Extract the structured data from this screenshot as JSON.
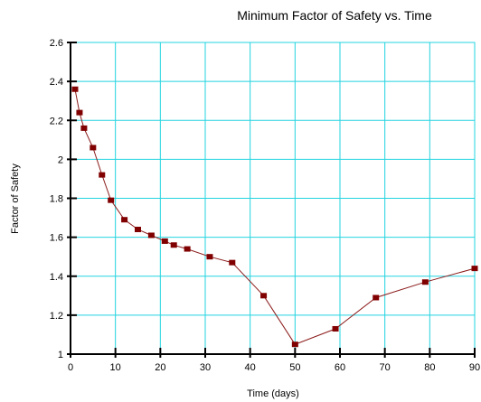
{
  "chart_data": {
    "type": "line",
    "title": "Minimum Factor of Safety vs. Time",
    "xlabel": "Time (days)",
    "ylabel": "Factor of Safety",
    "xlim": [
      0,
      90
    ],
    "ylim": [
      1,
      2.6
    ],
    "xticks": [
      0,
      10,
      20,
      30,
      40,
      50,
      60,
      70,
      80,
      90
    ],
    "yticks": [
      1,
      1.2,
      1.4,
      1.6,
      1.8,
      2,
      2.2,
      2.4,
      2.6
    ],
    "xtick_labels": [
      "0",
      "10",
      "20",
      "30",
      "40",
      "50",
      "60",
      "70",
      "80",
      "90"
    ],
    "ytick_labels": [
      "1",
      "1.2",
      "1.4",
      "1.6",
      "1.8",
      "2",
      "2.2",
      "2.4",
      "2.6"
    ],
    "grid": true,
    "legend": "none",
    "colors": {
      "line": "#8b1a1a",
      "marker": "#800000",
      "grid": "#22d4e0",
      "axis": "#000000"
    },
    "series": [
      {
        "x": [
          1,
          2,
          3,
          5,
          7,
          9,
          12,
          15,
          18,
          21,
          23,
          26,
          31,
          36,
          43,
          50,
          59,
          68,
          79,
          90
        ],
        "y": [
          2.36,
          2.24,
          2.16,
          2.06,
          1.92,
          1.79,
          1.69,
          1.64,
          1.61,
          1.58,
          1.56,
          1.54,
          1.5,
          1.47,
          1.3,
          1.05,
          1.13,
          1.29,
          1.37,
          1.44
        ]
      }
    ]
  }
}
